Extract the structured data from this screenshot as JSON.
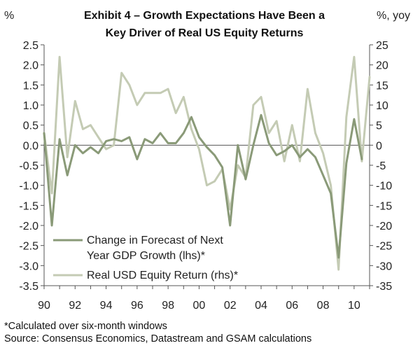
{
  "chart_data": {
    "type": "line",
    "title_lines": [
      "Exhibit 4 – Growth Expectations Have Been a",
      "Key Driver of Real US Equity Returns"
    ],
    "left_axis_unit": "%",
    "right_axis_unit": "%, yoy",
    "left_ylim": [
      -3.5,
      2.5
    ],
    "right_ylim": [
      -35,
      25
    ],
    "left_ticks": [
      "2.5",
      "2.0",
      "1.5",
      "1.0",
      "0.5",
      "0.0",
      "-0.5",
      "-1.0",
      "-1.5",
      "-2.0",
      "-2.5",
      "-3.0",
      "-3.5"
    ],
    "right_ticks": [
      "25",
      "20",
      "15",
      "10",
      "5",
      "0",
      "-5",
      "-10",
      "-15",
      "-20",
      "-25",
      "-30",
      "-35"
    ],
    "x_tick_labels": [
      "90",
      "92",
      "94",
      "96",
      "98",
      "00",
      "02",
      "04",
      "06",
      "08",
      "10"
    ],
    "x_range": [
      1990,
      2011
    ],
    "legend": {
      "series1_lines": [
        "Change in Forecast of Next",
        "Year GDP Growth (lhs)*"
      ],
      "series2_line": "Real USD Equity Return (rhs)*"
    },
    "series": [
      {
        "name": "Change in Forecast of Next Year GDP Growth (lhs)*",
        "axis": "left",
        "color": "#8a9a78",
        "x": [
          1990.0,
          1990.5,
          1991.0,
          1991.5,
          1992.0,
          1992.5,
          1993.0,
          1993.5,
          1994.0,
          1994.5,
          1995.0,
          1995.5,
          1996.0,
          1996.5,
          1997.0,
          1997.5,
          1998.0,
          1998.5,
          1999.0,
          1999.5,
          2000.0,
          2000.5,
          2001.0,
          2001.5,
          2002.0,
          2002.5,
          2003.0,
          2003.5,
          2004.0,
          2004.5,
          2005.0,
          2005.5,
          2006.0,
          2006.5,
          2007.0,
          2007.5,
          2008.0,
          2008.5,
          2009.0,
          2009.5,
          2010.0,
          2010.5
        ],
        "values": [
          0.3,
          -2.0,
          0.15,
          -0.75,
          0.0,
          -0.2,
          -0.05,
          -0.2,
          0.1,
          0.15,
          0.1,
          0.2,
          -0.35,
          0.15,
          0.05,
          0.3,
          0.05,
          0.05,
          0.3,
          0.7,
          0.2,
          -0.05,
          -0.25,
          -0.55,
          -2.0,
          0.0,
          -0.85,
          0.0,
          0.75,
          0.05,
          -0.25,
          -0.15,
          0.0,
          -0.3,
          -0.1,
          -0.3,
          -0.75,
          -1.2,
          -2.8,
          -0.45,
          0.65,
          -0.35
        ]
      },
      {
        "name": "Real USD Equity Return (rhs)*",
        "axis": "right",
        "color": "#c4cbb4",
        "x": [
          1990.0,
          1990.5,
          1991.0,
          1991.5,
          1992.0,
          1992.5,
          1993.0,
          1993.5,
          1994.0,
          1994.5,
          1995.0,
          1995.5,
          1996.0,
          1996.5,
          1997.0,
          1997.5,
          1998.0,
          1998.5,
          1999.0,
          1999.5,
          2000.0,
          2000.5,
          2001.0,
          2001.5,
          2002.0,
          2002.5,
          2003.0,
          2003.5,
          2004.0,
          2004.5,
          2005.0,
          2005.5,
          2006.0,
          2006.5,
          2007.0,
          2007.5,
          2008.0,
          2008.5,
          2009.0,
          2009.5,
          2010.0,
          2010.5
        ],
        "values": [
          3,
          -12,
          22,
          -3,
          11,
          4,
          5,
          2,
          -1,
          0,
          18,
          15,
          10,
          13,
          13,
          13,
          14,
          8,
          12,
          4,
          -1,
          -10,
          -9,
          -6,
          -16,
          -5,
          -8,
          10,
          12,
          3,
          6,
          -4,
          5,
          -4,
          14,
          3,
          -2,
          -10,
          -31,
          7,
          22,
          -4
        ]
      },
      {
        "name": "",
        "axis": "right",
        "color": "#c4cbb4",
        "x": [
          2010.5,
          2011.0
        ],
        "values": [
          -4,
          17
        ]
      }
    ]
  },
  "footnotes": {
    "line1": "*Calculated over six-month windows",
    "line2": "Source: Consensus Economics, Datastream and GSAM calculations"
  }
}
